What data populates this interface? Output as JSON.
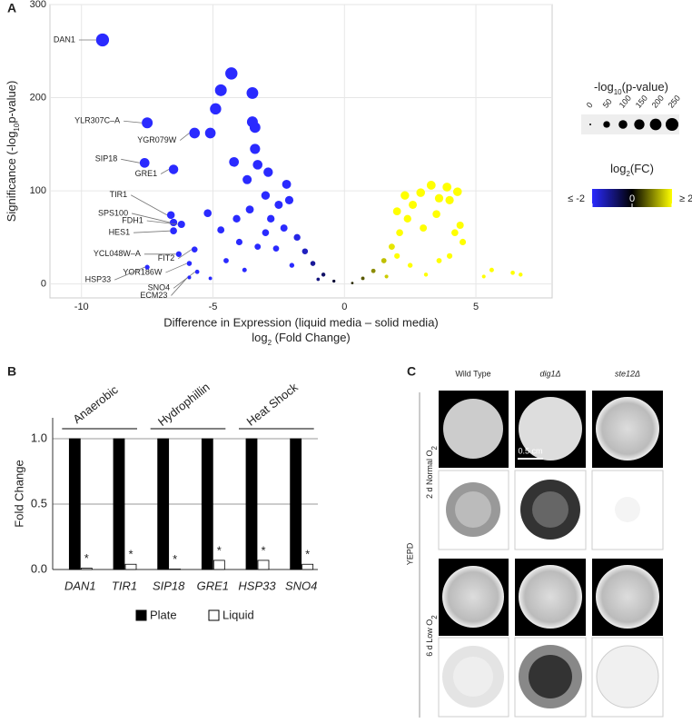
{
  "panel_labels": [
    "A",
    "B",
    "C"
  ],
  "chart_data": [
    {
      "type": "scatter",
      "xlabel": "Difference in Expression (liquid media – solid media)",
      "xlabel2": [
        "log",
        "2",
        " (Fold Change)"
      ],
      "ylabel": [
        "Significance (-log",
        "10",
        "p-value)"
      ],
      "x": [
        -9.2,
        -7.5,
        -5.7,
        -7.6,
        -6.5,
        -6.6,
        -6.5,
        -6.2,
        -6.5,
        -5.7,
        -6.3,
        -5.9,
        -7.5,
        -5.6,
        -5.9,
        -4.3,
        -4.7,
        -3.5,
        -4.9,
        -5.1,
        -3.5,
        -3.4,
        -4.2,
        -3.4,
        -3.3,
        -2.9,
        -3.7,
        -5.2,
        -4.7,
        -2.2,
        -2.1,
        -2.5,
        -3.0,
        -3.6,
        -2.8,
        -2.3,
        -1.8,
        -1.5,
        -1.2,
        -0.8,
        -0.4,
        -4.0,
        -3.3,
        -2.6,
        -4.5,
        -5.1,
        -3.8,
        -2.0,
        -1.0,
        -3.0,
        -4.1,
        0.3,
        0.7,
        1.1,
        1.5,
        1.8,
        2.1,
        2.4,
        2.6,
        2.9,
        3.3,
        3.9,
        4.3,
        4.0,
        3.6,
        2.3,
        2.0,
        4.4,
        4.5,
        4.2,
        3.6,
        3.1,
        2.5,
        1.6,
        2.0,
        3.0,
        3.5,
        4.0,
        5.6,
        6.4,
        5.3,
        6.7
      ],
      "y": [
        262,
        173,
        162,
        130,
        123,
        74,
        66,
        64,
        57,
        37,
        32,
        22,
        18,
        13,
        7,
        226,
        208,
        205,
        188,
        162,
        174,
        168,
        131,
        145,
        128,
        120,
        112,
        76,
        58,
        107,
        90,
        85,
        95,
        80,
        70,
        60,
        50,
        35,
        22,
        10,
        3,
        45,
        40,
        38,
        25,
        6,
        15,
        20,
        5,
        55,
        70,
        1,
        6,
        14,
        25,
        40,
        55,
        70,
        85,
        98,
        106,
        104,
        99,
        90,
        92,
        95,
        78,
        63,
        45,
        55,
        25,
        10,
        20,
        8,
        30,
        60,
        75,
        30,
        15,
        12,
        8,
        10
      ],
      "labels": [
        "DAN1",
        "YLR307C–A",
        "YGR079W",
        "SIP18",
        "GRE1",
        "TIR1",
        "SPS100",
        "FDH1",
        "HES1",
        "FIT2",
        "YCL048W–A",
        "YOR186W",
        "HSP33",
        "SNO4",
        "ECM23",
        null,
        null,
        null,
        null,
        null,
        null,
        null,
        null,
        null,
        null,
        null,
        null,
        null,
        null,
        null,
        null,
        null,
        null,
        null,
        null,
        null,
        null,
        null,
        null,
        null,
        null,
        null,
        null,
        null,
        null,
        null,
        null,
        null,
        null,
        null,
        null,
        null,
        null,
        null,
        null,
        null,
        null,
        null,
        null,
        null,
        null,
        null,
        null,
        null,
        null,
        null,
        null,
        null,
        null,
        null,
        null,
        null,
        null,
        null,
        null,
        null,
        null,
        null,
        null,
        null,
        null,
        null
      ],
      "xlim": [
        -11.2,
        7.9
      ],
      "ylim": [
        -15,
        300
      ],
      "xticks": [
        -10,
        -5,
        0,
        5
      ],
      "yticks": [
        0,
        100,
        200,
        300
      ],
      "grid": true,
      "size_legend": {
        "title": [
          "-log",
          "10",
          "(p-value)"
        ],
        "values": [
          0,
          50,
          100,
          150,
          200,
          250
        ]
      },
      "color_legend": {
        "title": [
          "log",
          "2",
          "(FC)"
        ],
        "colors": [
          "#2a2aff",
          "#000000",
          "#ffff00"
        ],
        "ticks": [
          {
            "value": -2,
            "label": "≤ -2"
          },
          0,
          {
            "value": 2,
            "label": "≥ 2"
          }
        ]
      }
    },
    {
      "type": "bar",
      "ylabel": "Fold Change",
      "categories": [
        "DAN1",
        "TIR1",
        "SIP18",
        "GRE1",
        "HSP33",
        "SNO4"
      ],
      "series": [
        {
          "name": "Plate",
          "color": "#000000",
          "values": [
            1,
            1,
            1,
            1,
            1,
            1
          ]
        },
        {
          "name": "Liquid",
          "color": "#ffffff",
          "values": [
            0.01,
            0.04,
            0.003,
            0.07,
            0.07,
            0.04
          ]
        }
      ],
      "annotations": [
        "*",
        "*",
        "*",
        "*",
        "*",
        "*"
      ],
      "groups": [
        "Anaerobic",
        "Hydrophillin",
        "Heat Shock"
      ],
      "ylim": [
        0,
        1.16
      ],
      "yticks": [
        {
          "value": 0,
          "label": "0.0"
        },
        {
          "value": 0.5,
          "label": "0.5"
        },
        {
          "value": 1,
          "label": "1.0"
        }
      ],
      "grid": true
    }
  ],
  "panel_c": {
    "columns": [
      "Wild Type",
      "dig1Δ",
      "ste12Δ"
    ],
    "rows": [
      [
        "2 d Normal O",
        "2"
      ],
      [
        "6 d Low O",
        "2"
      ]
    ],
    "medium": "YEPD",
    "scale_bar": "0.5 cm"
  }
}
